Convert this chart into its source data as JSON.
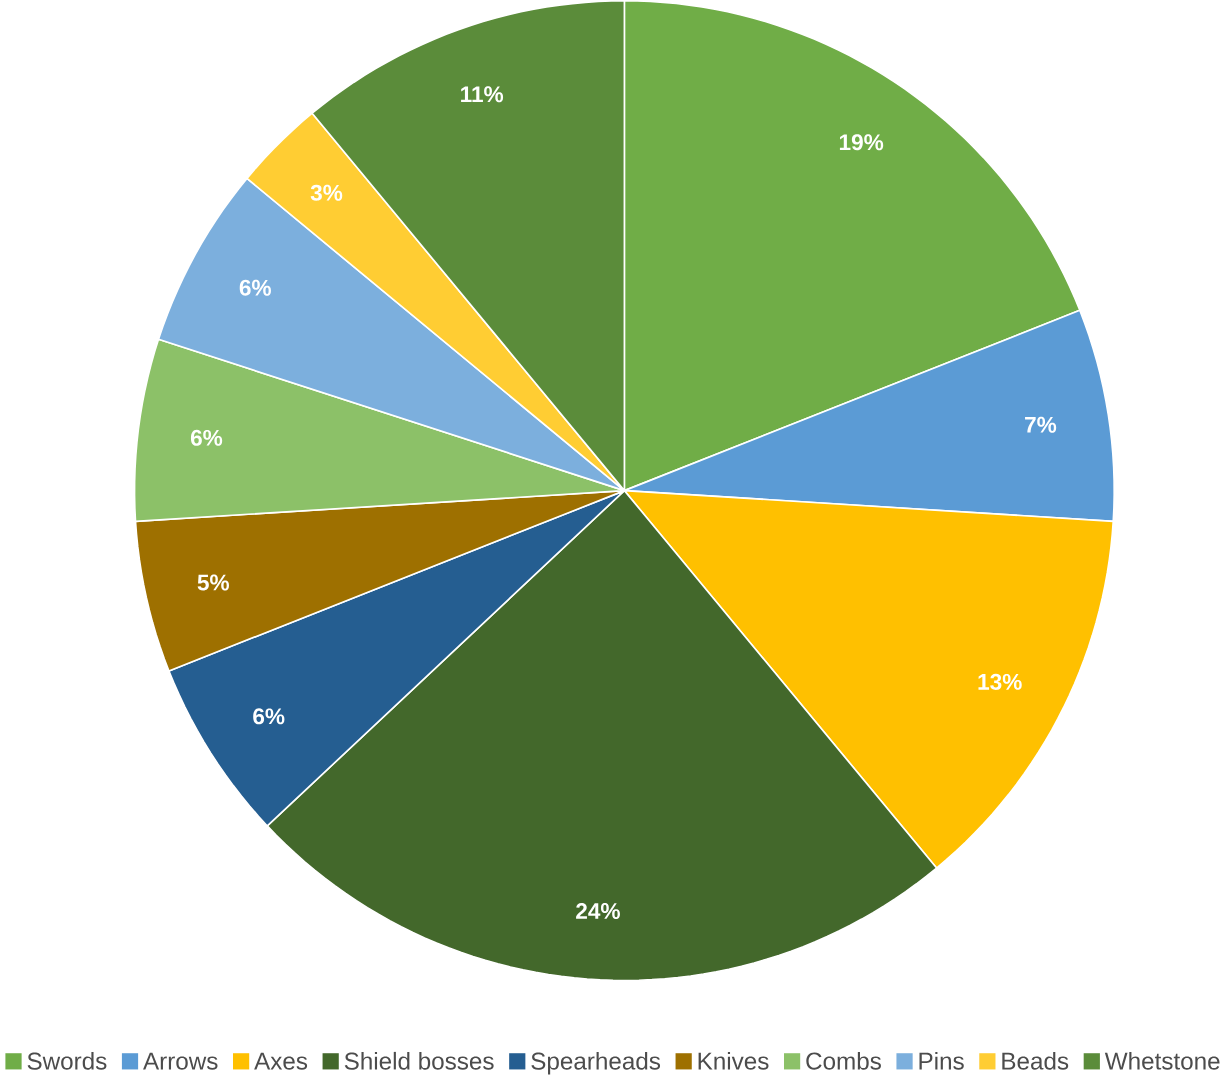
{
  "chart_data": {
    "type": "pie",
    "categories": [
      "Swords",
      "Arrows",
      "Axes",
      "Shield bosses",
      "Spearheads",
      "Knives",
      "Combs",
      "Pins",
      "Beads",
      "Whetstone"
    ],
    "values": [
      19,
      7,
      13,
      24,
      6,
      5,
      6,
      6,
      3,
      11
    ],
    "value_labels": [
      "19%",
      "7%",
      "13%",
      "24%",
      "6%",
      "5%",
      "6%",
      "6%",
      "3%",
      "11%"
    ],
    "colors": [
      "#70ad47",
      "#5b9bd5",
      "#ffc000",
      "#43682b",
      "#255e91",
      "#9e7000",
      "#8cc168",
      "#7cafdd",
      "#ffcd33",
      "#5b8c3a"
    ],
    "legend": "bottom"
  }
}
